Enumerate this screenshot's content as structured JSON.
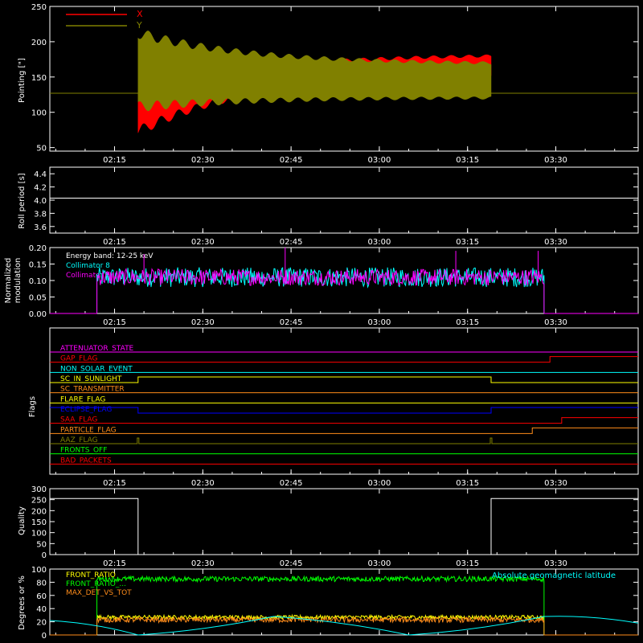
{
  "x_axis": {
    "tick_labels": [
      "02:15",
      "02:30",
      "02:45",
      "03:00",
      "03:15",
      "03:30"
    ],
    "tick_values": [
      "02:15",
      "02:30",
      "02:45",
      "03:00",
      "03:15",
      "03:30"
    ],
    "range": [
      "02:04",
      "03:44"
    ]
  },
  "colors": {
    "background": "#000000",
    "axes": "#ffffff",
    "red": "#ff0000",
    "olive": "#808000",
    "cyan": "#00ffff",
    "magenta": "#ff00ff",
    "green": "#00ff00",
    "orange": "#ff8c1a",
    "yellow": "#ffff00",
    "blue": "#0000ff"
  },
  "chart_data": [
    {
      "type": "line",
      "id": "pointing",
      "ylabel": "Pointing [\"]",
      "ylim": [
        45,
        250
      ],
      "yticks": [
        50,
        100,
        150,
        200,
        250
      ],
      "legend_placement": "top-left",
      "series": [
        {
          "name": "X",
          "color": "#ff0000",
          "baseline": 127,
          "active_window": [
            "02:19",
            "03:19"
          ],
          "envelope_start": [
            73,
            124
          ],
          "envelope_end": [
            155,
            182
          ]
        },
        {
          "name": "Y",
          "color": "#808000",
          "baseline": 127,
          "active_window": [
            "02:19",
            "03:19"
          ],
          "envelope_start": [
            108,
            212
          ],
          "envelope_end": [
            121,
            168
          ]
        }
      ]
    },
    {
      "type": "line",
      "id": "roll_period",
      "ylabel": "Roll period [s]",
      "ylim": [
        3.5,
        4.5
      ],
      "yticks": [
        3.6,
        3.8,
        4.0,
        4.2,
        4.4
      ],
      "series": [
        {
          "color": "#ffffff",
          "value": 4.03
        }
      ]
    },
    {
      "type": "line",
      "id": "modulation",
      "ylabel": [
        "Normalized",
        "modulation"
      ],
      "ylim": [
        0.0,
        0.2
      ],
      "yticks": [
        0.0,
        0.05,
        0.1,
        0.15,
        0.2
      ],
      "ytick_labels": [
        "0.00",
        "0.05",
        "0.10",
        "0.15",
        "0.20"
      ],
      "legend": [
        "Energy band: 12-25 keV",
        "Collimator 8",
        "Collimator 9"
      ],
      "active_window": [
        "02:12",
        "03:28"
      ],
      "series": [
        {
          "name": "Collimator 8",
          "color": "#00ffff",
          "mean": 0.11,
          "spread": 0.03
        },
        {
          "name": "Collimator 9",
          "color": "#ff00ff",
          "mean": 0.11,
          "spread": 0.025
        }
      ],
      "spikes": [
        [
          "02:20",
          0.18
        ],
        [
          "02:44",
          0.2
        ],
        [
          "03:13",
          0.19
        ],
        [
          "03:27",
          0.19
        ]
      ]
    },
    {
      "type": "line",
      "id": "flags",
      "ylabel": "Flags",
      "flags": [
        {
          "name": "ATTENUATOR_STATE",
          "color": "#ff00ff",
          "transitions": []
        },
        {
          "name": "GAP_FLAG",
          "color": "#ff0000",
          "transitions": [
            [
              "03:29",
              1
            ]
          ]
        },
        {
          "name": "NON_SOLAR_EVENT",
          "color": "#00ffff",
          "transitions": []
        },
        {
          "name": "SC_IN_SUNLIGHT",
          "color": "#ffff00",
          "transitions": [
            [
              "02:19",
              1
            ],
            [
              "03:19",
              0
            ]
          ]
        },
        {
          "name": "SC_TRANSMITTER",
          "color": "#ff8c1a",
          "transitions": []
        },
        {
          "name": "FLARE_FLAG",
          "color": "#ffff00",
          "transitions": []
        },
        {
          "name": "ECLIPSE_FLAG",
          "color": "#0000ff",
          "transitions": [
            [
              "02:19",
              0
            ],
            [
              "03:19",
              1
            ]
          ]
        },
        {
          "name": "SAA_FLAG",
          "color": "#ff0000",
          "transitions": [
            [
              "03:31",
              1
            ]
          ]
        },
        {
          "name": "PARTICLE_FLAG",
          "color": "#ff8c1a",
          "transitions": [
            [
              "03:26",
              1
            ]
          ]
        },
        {
          "name": "AAZ_FLAG",
          "color": "#808000",
          "pulses": [
            "02:19",
            "03:19"
          ]
        },
        {
          "name": "FRONTS_OFF",
          "color": "#00ff00",
          "transitions": []
        },
        {
          "name": "BAD_PACKETS",
          "color": "#ff0000",
          "transitions": []
        }
      ]
    },
    {
      "type": "line",
      "id": "quality",
      "ylabel": "Quality",
      "ylim": [
        0,
        300
      ],
      "yticks": [
        0,
        50,
        100,
        150,
        200,
        250,
        300
      ],
      "series": [
        {
          "color": "#ffffff",
          "segments": [
            [
              [
                "02:04",
                255
              ],
              [
                "02:19",
                255
              ],
              [
                "02:19",
                0
              ],
              [
                "03:19",
                0
              ],
              [
                "03:19",
                255
              ],
              [
                "03:44",
                255
              ]
            ]
          ]
        }
      ]
    },
    {
      "type": "line",
      "id": "ratios",
      "ylabel": "Degrees or %",
      "ylim": [
        0,
        100
      ],
      "yticks": [
        0,
        20,
        40,
        60,
        80,
        100
      ],
      "legend": [
        "FRONT_RATIO",
        "FRONT_RATIO_...",
        "MAX_DET_VS_TOT"
      ],
      "right_legend": "Absolute geomagnetic latitude",
      "active_window": [
        "02:12",
        "03:28"
      ],
      "series": [
        {
          "name": "FRONT_RATIO",
          "color": "#ffff00",
          "mean": 27,
          "spread": 3
        },
        {
          "name": "FRONT_RATIO_...",
          "color": "#00ff00",
          "mean": 85,
          "spread": 4
        },
        {
          "name": "MAX_DET_VS_TOT",
          "color": "#ff8c1a",
          "mean": 23,
          "spread": 4
        },
        {
          "name": "Absolute geomagnetic latitude",
          "color": "#00ffff",
          "points": [
            [
              "02:04",
              22
            ],
            [
              "02:19",
              0
            ],
            [
              "02:42",
              28
            ],
            [
              "03:05",
              0
            ],
            [
              "03:28",
              28
            ],
            [
              "03:44",
              18
            ]
          ]
        }
      ]
    }
  ]
}
